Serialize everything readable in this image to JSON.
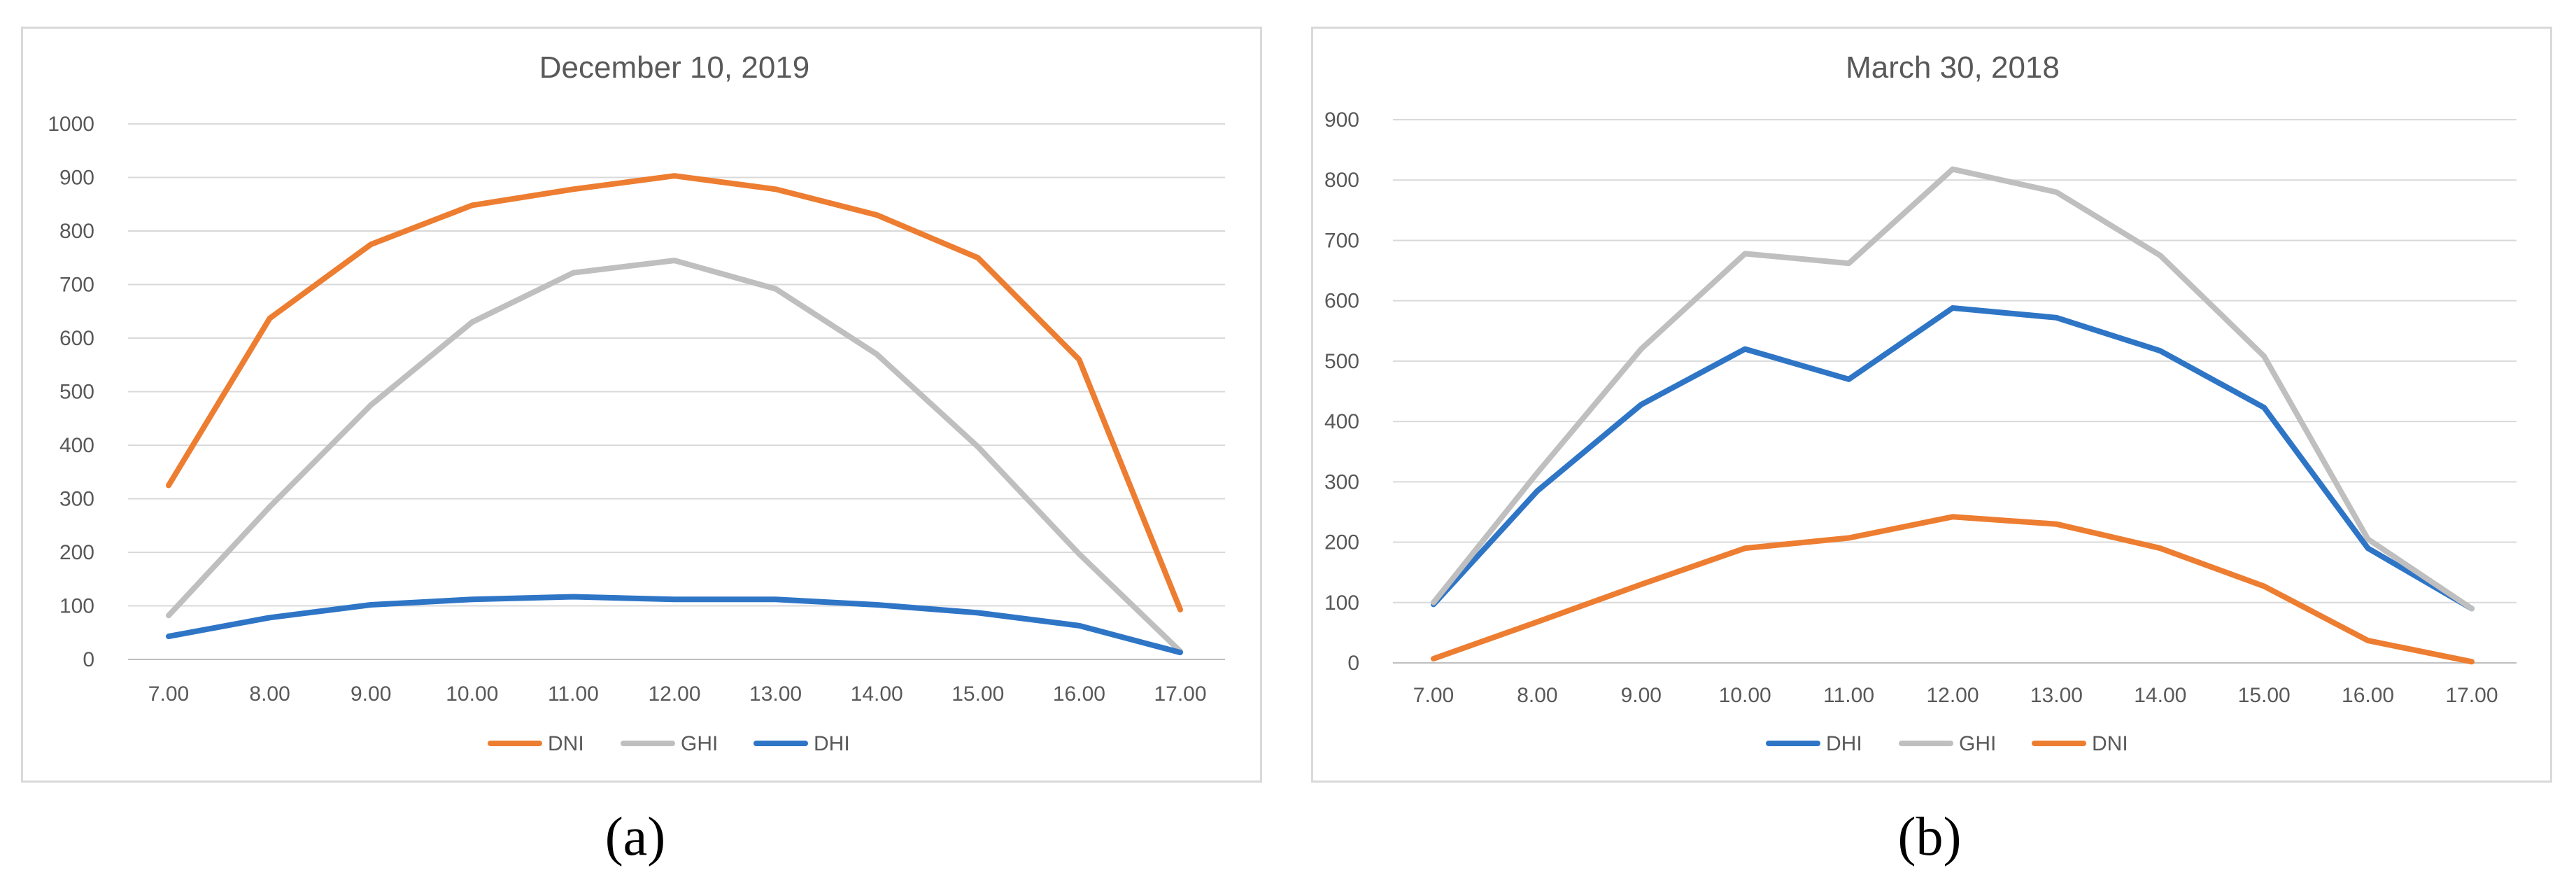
{
  "chart_data": [
    {
      "type": "line",
      "title": "December 10, 2019",
      "categories": [
        "7.00",
        "8.00",
        "9.00",
        "10.00",
        "11.00",
        "12.00",
        "13.00",
        "14.00",
        "15.00",
        "16.00",
        "17.00"
      ],
      "ylim": [
        0,
        1000
      ],
      "yticks": [
        0,
        100,
        200,
        300,
        400,
        500,
        600,
        700,
        800,
        900,
        1000
      ],
      "grid": true,
      "legend_position": "bottom",
      "series": [
        {
          "name": "DNI",
          "color": "#ED7D31",
          "values": [
            325,
            637,
            775,
            848,
            878,
            903,
            878,
            830,
            750,
            560,
            93
          ]
        },
        {
          "name": "GHI",
          "color": "#BFBFBF",
          "values": [
            82,
            285,
            475,
            630,
            722,
            745,
            692,
            570,
            397,
            197,
            15
          ]
        },
        {
          "name": "DHI",
          "color": "#2E75C6",
          "values": [
            43,
            78,
            102,
            112,
            117,
            112,
            112,
            102,
            87,
            63,
            13
          ]
        }
      ]
    },
    {
      "type": "line",
      "title": "March 30, 2018",
      "categories": [
        "7.00",
        "8.00",
        "9.00",
        "10.00",
        "11.00",
        "12.00",
        "13.00",
        "14.00",
        "15.00",
        "16.00",
        "17.00"
      ],
      "ylim": [
        0,
        900
      ],
      "yticks": [
        0,
        100,
        200,
        300,
        400,
        500,
        600,
        700,
        800,
        900
      ],
      "grid": true,
      "legend_position": "bottom",
      "series": [
        {
          "name": "DHI",
          "color": "#2E75C6",
          "values": [
            97,
            285,
            428,
            520,
            470,
            588,
            572,
            517,
            423,
            190,
            90
          ]
        },
        {
          "name": "GHI",
          "color": "#BFBFBF",
          "values": [
            100,
            315,
            520,
            678,
            662,
            818,
            780,
            675,
            508,
            205,
            90
          ]
        },
        {
          "name": "DNI",
          "color": "#ED7D31",
          "values": [
            7,
            68,
            130,
            190,
            207,
            242,
            230,
            190,
            127,
            37,
            2
          ]
        }
      ]
    }
  ],
  "captions": [
    "(a)",
    "(b)"
  ]
}
